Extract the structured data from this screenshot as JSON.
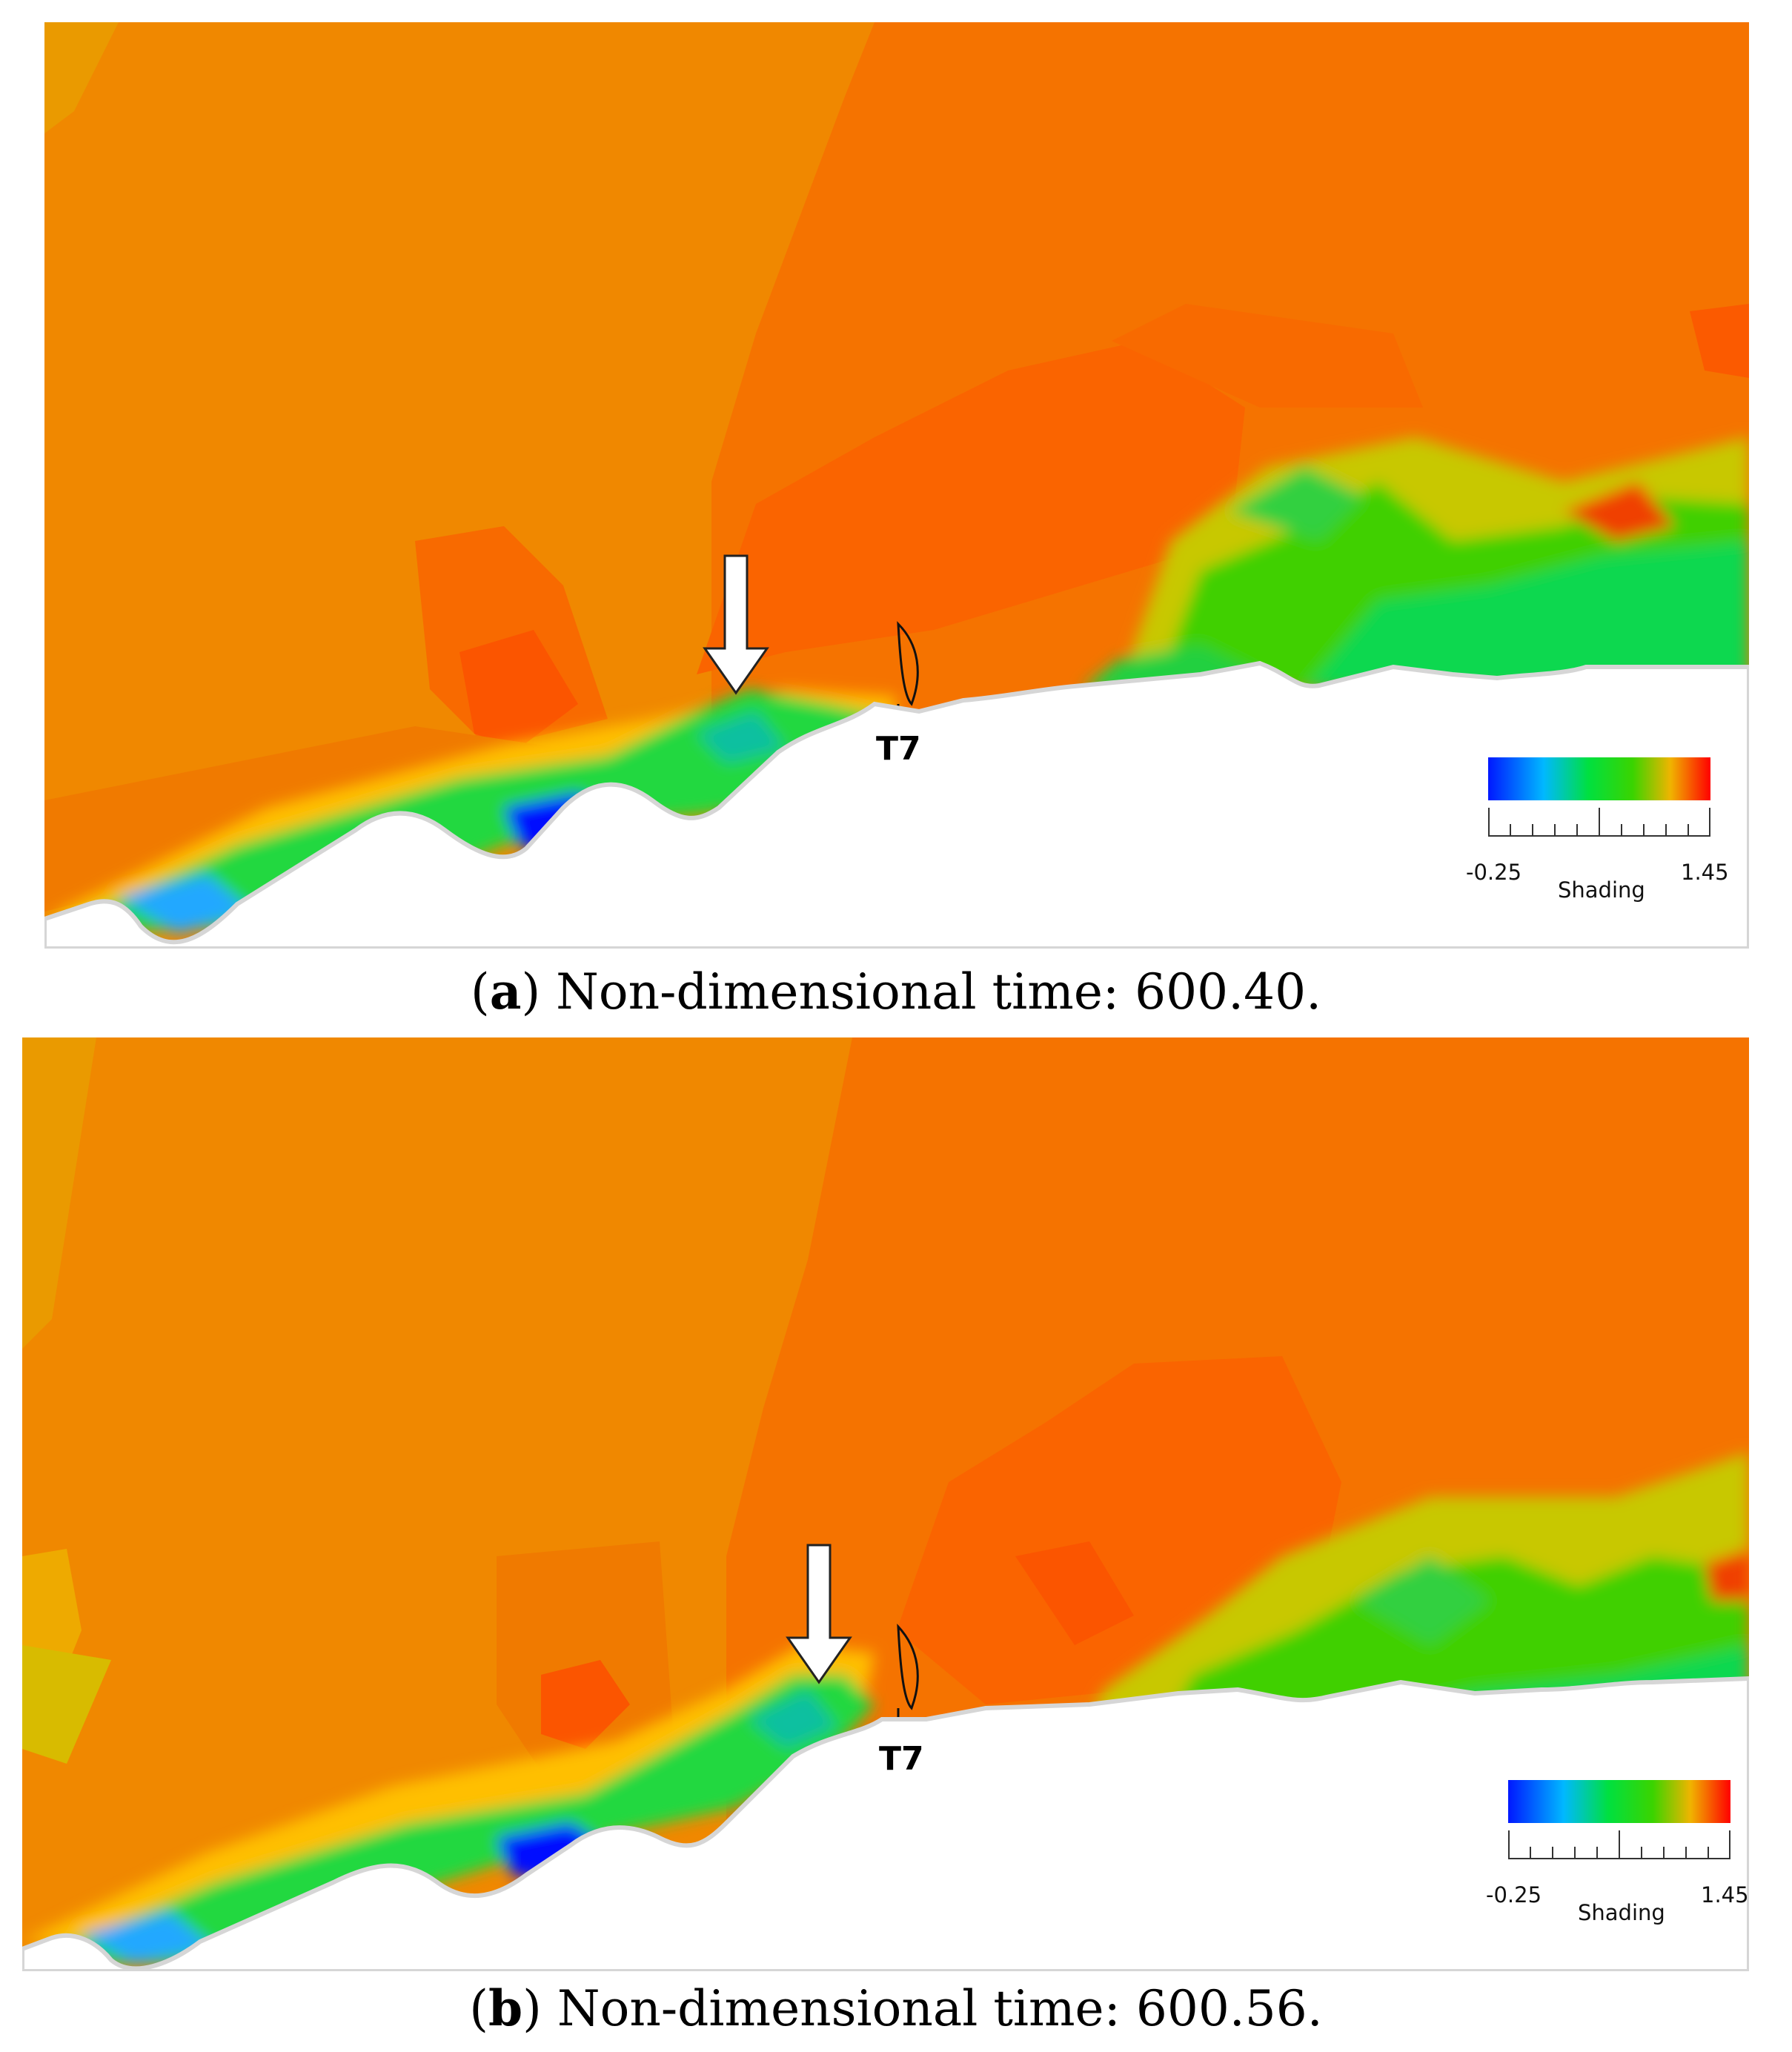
{
  "panels": [
    {
      "caption_letter": "a",
      "caption_text": " Non-dimensional time: 600.40.",
      "probe_label": "T7",
      "legend": {
        "min": "-0.25",
        "max": "1.45",
        "title": "Shading"
      }
    },
    {
      "caption_letter": "b",
      "caption_text": " Non-dimensional time: 600.56.",
      "probe_label": "T7",
      "legend": {
        "min": "-0.25",
        "max": "1.45",
        "title": "Shading"
      }
    }
  ],
  "colormap": [
    "#0018ff",
    "#00b8ff",
    "#00e040",
    "#3ad400",
    "#f0b400",
    "#ff0000"
  ]
}
